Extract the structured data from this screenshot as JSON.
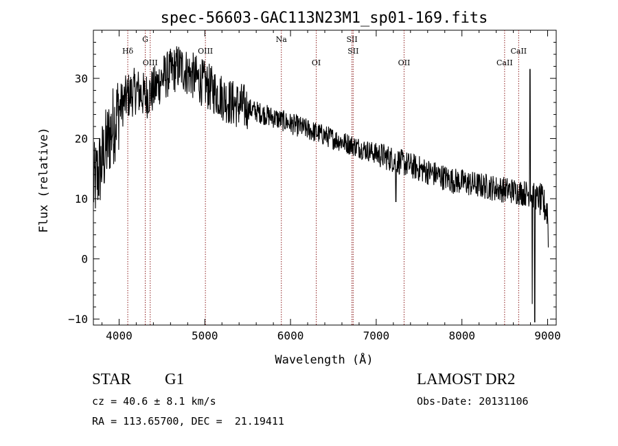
{
  "chart_data": {
    "type": "line",
    "title": "spec-56603-GAC113N23M1_sp01-169.fits",
    "xlabel": "Wavelength (Å)",
    "ylabel": "Flux (relative)",
    "xlim": [
      3700,
      9100
    ],
    "ylim": [
      -11,
      38
    ],
    "xticks": [
      4000,
      5000,
      6000,
      7000,
      8000,
      9000
    ],
    "yticks": [
      -10,
      0,
      10,
      20,
      30
    ],
    "grid": false,
    "continuum": [
      [
        3700,
        12
      ],
      [
        3800,
        16
      ],
      [
        3900,
        21
      ],
      [
        4000,
        25
      ],
      [
        4100,
        27
      ],
      [
        4200,
        28
      ],
      [
        4300,
        27
      ],
      [
        4400,
        28
      ],
      [
        4500,
        30
      ],
      [
        4600,
        31
      ],
      [
        4700,
        32
      ],
      [
        4800,
        31
      ],
      [
        4900,
        30
      ],
      [
        5000,
        29
      ],
      [
        5100,
        28
      ],
      [
        5200,
        27
      ],
      [
        5300,
        26
      ],
      [
        5400,
        25.5
      ],
      [
        5500,
        25
      ],
      [
        5600,
        24.5
      ],
      [
        5700,
        24
      ],
      [
        5800,
        23.5
      ],
      [
        5900,
        23
      ],
      [
        6000,
        22.5
      ],
      [
        6100,
        22
      ],
      [
        6200,
        21.5
      ],
      [
        6300,
        21
      ],
      [
        6400,
        20.5
      ],
      [
        6500,
        20
      ],
      [
        6600,
        19.5
      ],
      [
        6700,
        19
      ],
      [
        6800,
        18.5
      ],
      [
        6900,
        18
      ],
      [
        7000,
        17.5
      ],
      [
        7100,
        17
      ],
      [
        7200,
        16.5
      ],
      [
        7300,
        16
      ],
      [
        7400,
        15.5
      ],
      [
        7500,
        15
      ],
      [
        7600,
        14.5
      ],
      [
        7700,
        14
      ],
      [
        7800,
        13.5
      ],
      [
        7900,
        13
      ],
      [
        8000,
        12.8
      ],
      [
        8100,
        12.5
      ],
      [
        8200,
        12.2
      ],
      [
        8300,
        12
      ],
      [
        8400,
        11.7
      ],
      [
        8500,
        11.5
      ],
      [
        8600,
        11.3
      ],
      [
        8700,
        11
      ],
      [
        8800,
        10.8
      ],
      [
        8900,
        10
      ],
      [
        9000,
        8
      ],
      [
        9010,
        1
      ]
    ],
    "features": [
      {
        "wavelength": 7230,
        "flux": 9.5
      },
      {
        "wavelength": 8795,
        "flux": 31.5
      },
      {
        "wavelength": 8820,
        "flux": -7.5
      },
      {
        "wavelength": 8850,
        "flux": -10.5
      }
    ],
    "lines": [
      {
        "name": "Hδ",
        "wavelength": 4101,
        "label_row": 2
      },
      {
        "name": "G",
        "wavelength": 4305,
        "label_row": 1
      },
      {
        "name": "OIII",
        "wavelength": 4363,
        "label_row": 3
      },
      {
        "name": "OIII",
        "wavelength": 5007,
        "label_row": 2
      },
      {
        "name": "Na",
        "wavelength": 5893,
        "label_row": 1
      },
      {
        "name": "OI",
        "wavelength": 6300,
        "label_row": 3
      },
      {
        "name": "SII",
        "wavelength": 6717,
        "label_row": 1
      },
      {
        "name": "SII",
        "wavelength": 6731,
        "label_row": 2
      },
      {
        "name": "OII",
        "wavelength": 7325,
        "label_row": 3
      },
      {
        "name": "CaII",
        "wavelength": 8498,
        "label_row": 3
      },
      {
        "name": "CaII",
        "wavelength": 8662,
        "label_row": 2
      }
    ]
  },
  "info": {
    "object_class": "STAR",
    "subclass": "G1",
    "survey": "LAMOST DR2",
    "cz": "cz = 40.6 ± 8.1 km/s",
    "obs_date": "Obs-Date: 20131106",
    "coords": "RA = 113.65700, DEC =  21.19411"
  },
  "colors": {
    "line_marker": "#8b1a1a",
    "spectrum": "#000000"
  }
}
